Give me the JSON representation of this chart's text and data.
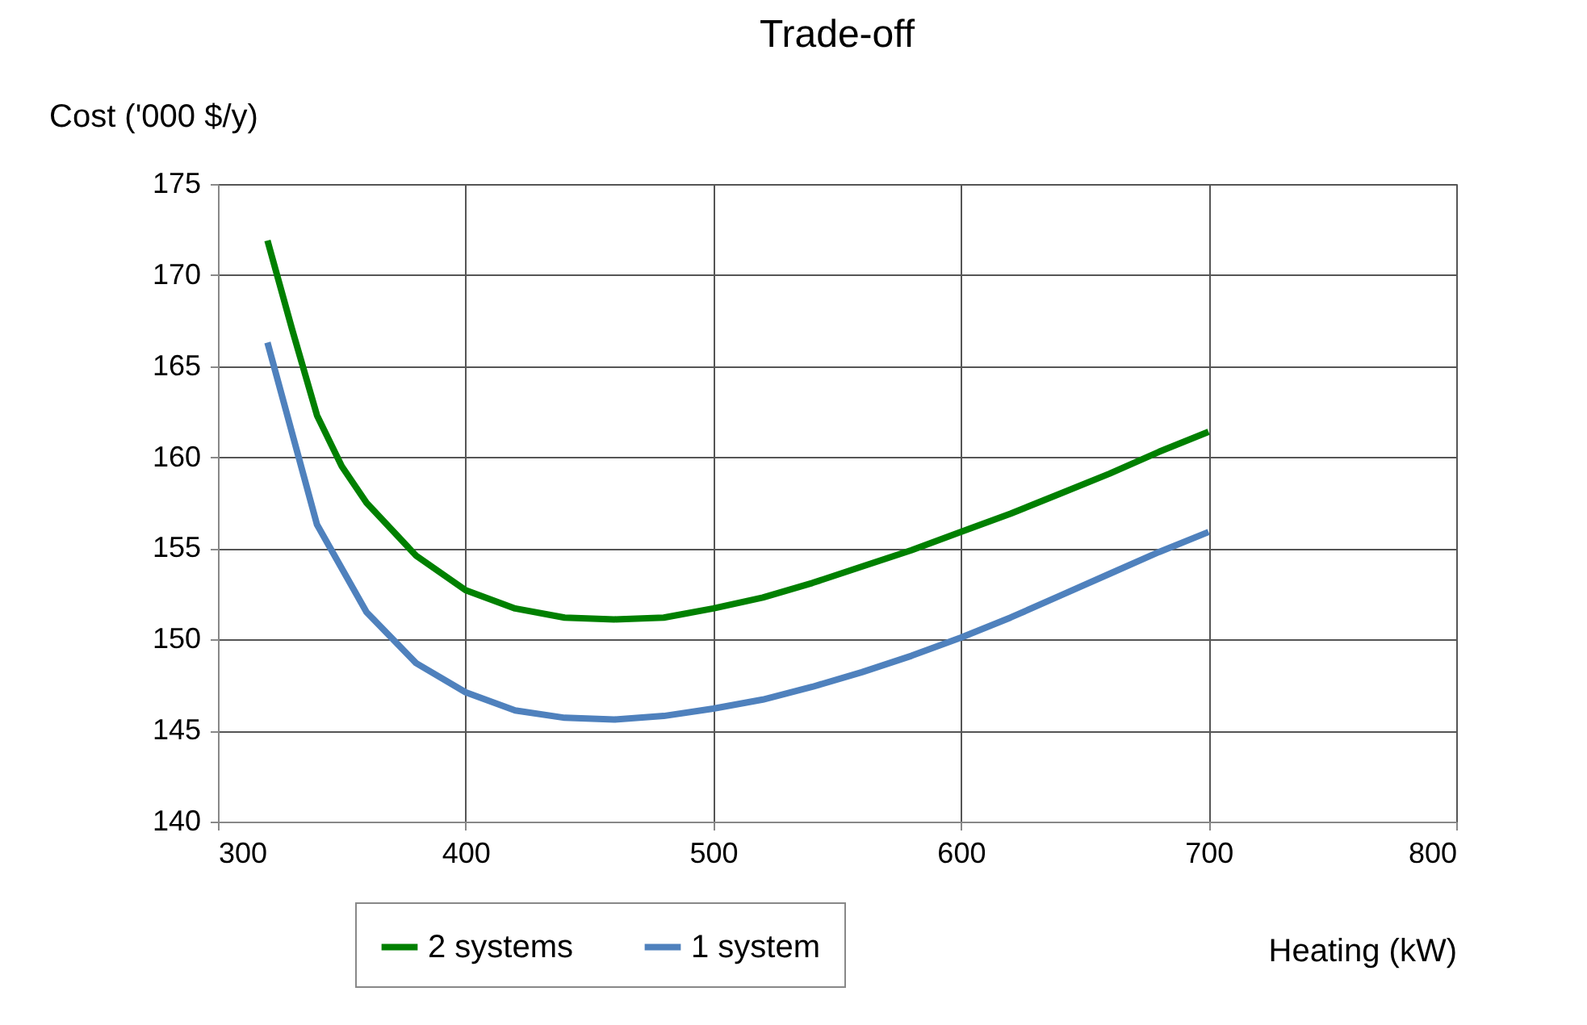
{
  "chart_data": {
    "type": "line",
    "title": "Trade-off",
    "xlabel": "Heating (kW)",
    "ylabel": "Cost ('000 $/y)",
    "xlim": [
      300,
      800
    ],
    "xticks": [
      300,
      400,
      500,
      600,
      700,
      800
    ],
    "ylim": [
      140,
      175
    ],
    "yticks": [
      140,
      145,
      150,
      155,
      160,
      165,
      170,
      175
    ],
    "grid": true,
    "legend": "bottom",
    "marker": "none",
    "line_style": "solid",
    "series": [
      {
        "name": "2 systems",
        "color": "#008000",
        "x": [
          320,
          330,
          340,
          350,
          360,
          380,
          400,
          420,
          440,
          460,
          480,
          500,
          520,
          540,
          560,
          580,
          600,
          620,
          640,
          660,
          680,
          700
        ],
        "values": [
          171.9,
          167.0,
          162.3,
          159.5,
          157.5,
          154.6,
          152.7,
          151.7,
          151.2,
          151.1,
          151.2,
          151.7,
          152.3,
          153.1,
          154.0,
          154.9,
          155.9,
          156.9,
          158.0,
          159.1,
          160.3,
          161.4
        ]
      },
      {
        "name": "1 system",
        "color": "#4f81bd",
        "x": [
          320,
          340,
          360,
          380,
          400,
          420,
          440,
          460,
          480,
          500,
          520,
          540,
          560,
          580,
          600,
          620,
          640,
          660,
          680,
          700
        ],
        "values": [
          166.3,
          156.3,
          151.5,
          148.7,
          147.1,
          146.1,
          145.7,
          145.6,
          145.8,
          146.2,
          146.7,
          147.4,
          148.2,
          149.1,
          150.1,
          151.2,
          152.4,
          153.6,
          154.8,
          155.9
        ]
      }
    ]
  }
}
